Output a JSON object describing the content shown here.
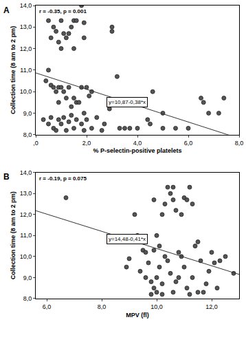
{
  "chart_data": [
    {
      "type": "scatter",
      "title": "A",
      "x_label": "% P-selectin-positive platelets",
      "y_label": "Collection time (8 am to 2 pm)",
      "annotation": "r = -0.35, p = 0.001",
      "regression": {
        "intercept": 10.87,
        "slope": -0.38,
        "label": "y=10,87-0,38*x"
      },
      "color": "#555555",
      "marker": "circle",
      "grid": false,
      "x": [
        0.5,
        0.7,
        0.8,
        1.0,
        1.1,
        1.3,
        0.6,
        0.9,
        1.2,
        1.0,
        1.4,
        1.5,
        1.6,
        1.8,
        1.9,
        1.5,
        3.0,
        3.0,
        1.9,
        0.5,
        0.4,
        0.6,
        0.7,
        0.8,
        0.9,
        1.0,
        1.1,
        1.3,
        1.5,
        1.6,
        1.7,
        1.8,
        2.0,
        2.1,
        2.2,
        3.2,
        3.1,
        4.6,
        2.9,
        1.2,
        1.4,
        0.9,
        1.9,
        0.3,
        0.5,
        0.6,
        0.7,
        0.8,
        0.9,
        1.0,
        1.1,
        1.2,
        1.3,
        1.4,
        1.5,
        1.6,
        1.8,
        1.9,
        2.0,
        2.2,
        2.4,
        2.6,
        2.7,
        3.3,
        3.5,
        3.7,
        4.0,
        4.4,
        4.5,
        5.0,
        5.5,
        6.0,
        6.5,
        6.6,
        6.8,
        7.2,
        7.4,
        5.0
      ],
      "y": [
        13.3,
        13.0,
        12.8,
        13.3,
        12.7,
        12.7,
        12.5,
        12.3,
        12.5,
        12.0,
        13.0,
        13.3,
        13.3,
        14.0,
        12.5,
        12.0,
        13.0,
        12.8,
        13.2,
        11.0,
        10.5,
        10.3,
        10.2,
        10.0,
        10.2,
        10.2,
        10.0,
        10.2,
        9.7,
        9.5,
        9.5,
        10.2,
        10.2,
        9.8,
        10.0,
        10.7,
        9.5,
        10.0,
        9.2,
        9.7,
        9.3,
        9.5,
        9.0,
        8.7,
        8.5,
        8.8,
        8.3,
        8.2,
        8.7,
        8.5,
        8.8,
        8.2,
        8.6,
        8.9,
        8.3,
        8.7,
        8.5,
        8.2,
        8.7,
        8.3,
        8.8,
        8.2,
        8.5,
        8.3,
        8.3,
        8.3,
        8.3,
        8.7,
        8.5,
        8.3,
        8.3,
        8.3,
        9.7,
        9.5,
        9.0,
        9.0,
        9.7,
        9.0
      ],
      "xlim": [
        0,
        8
      ],
      "xticks": [
        {
          "value": 0,
          "label": ",0"
        },
        {
          "value": 2,
          "label": "2,0"
        },
        {
          "value": 4,
          "label": "4,0"
        },
        {
          "value": 6,
          "label": "6,0"
        },
        {
          "value": 8,
          "label": "8,0"
        }
      ],
      "ylim": [
        8,
        14
      ],
      "yticks": [
        {
          "value": 8,
          "label": "8,0"
        },
        {
          "value": 9,
          "label": "9,0"
        },
        {
          "value": 10,
          "label": "10,0"
        },
        {
          "value": 11,
          "label": "11,0"
        },
        {
          "value": 12,
          "label": "12,0"
        },
        {
          "value": 13,
          "label": "13,0"
        },
        {
          "value": 14,
          "label": "14,0"
        }
      ]
    },
    {
      "type": "scatter",
      "title": "B",
      "x_label": "MPV (fl)",
      "y_label": "Collection time (8 am to 2 pm)",
      "annotation": "r = -0.19, p = 0.075",
      "regression": {
        "intercept": 14.48,
        "slope": -0.41,
        "label": "y=14,48-0,41*x"
      },
      "color": "#555555",
      "marker": "circle",
      "grid": false,
      "x": [
        6.7,
        8.9,
        9.0,
        9.2,
        9.3,
        9.4,
        9.5,
        9.6,
        9.7,
        9.8,
        9.8,
        9.9,
        10.0,
        10.0,
        10.1,
        10.1,
        10.2,
        10.2,
        10.3,
        10.4,
        10.5,
        10.6,
        10.6,
        10.7,
        10.3,
        10.4,
        10.5,
        10.6,
        10.7,
        10.8,
        10.9,
        11.0,
        11.1,
        11.2,
        11.3,
        11.0,
        11.1,
        11.2,
        11.3,
        11.4,
        11.5,
        11.6,
        11.7,
        11.8,
        11.9,
        12.0,
        12.1,
        12.2,
        12.3,
        12.5,
        12.8,
        9.9,
        10.0,
        10.2,
        9.6,
        9.4,
        10.8,
        11.5,
        10.9,
        9.9
      ],
      "y": [
        12.8,
        9.5,
        9.9,
        12.0,
        11.0,
        10.7,
        10.3,
        10.2,
        9.7,
        8.8,
        8.2,
        8.5,
        8.3,
        9.0,
        9.5,
        10.5,
        8.7,
        12.0,
        12.5,
        13.3,
        13.0,
        12.7,
        13.3,
        12.2,
        10.0,
        9.8,
        9.2,
        8.3,
        8.8,
        10.2,
        10.0,
        12.8,
        12.7,
        13.3,
        12.5,
        9.5,
        8.5,
        8.2,
        9.0,
        10.5,
        10.7,
        9.8,
        8.3,
        8.7,
        9.3,
        10.2,
        9.7,
        8.5,
        9.8,
        10.0,
        9.2,
        10.3,
        11.0,
        8.2,
        9.0,
        9.3,
        9.0,
        8.3,
        12.0,
        12.7
      ],
      "xlim": [
        5.6,
        13
      ],
      "xticks": [
        {
          "value": 6,
          "label": "6,0"
        },
        {
          "value": 8,
          "label": "8,0"
        },
        {
          "value": 10,
          "label": "10,0"
        },
        {
          "value": 12,
          "label": "12,0"
        }
      ],
      "ylim": [
        8,
        14
      ],
      "yticks": [
        {
          "value": 8,
          "label": "8,0"
        },
        {
          "value": 9,
          "label": "9,0"
        },
        {
          "value": 10,
          "label": "10,0"
        },
        {
          "value": 11,
          "label": "11,0"
        },
        {
          "value": 12,
          "label": "12,0"
        },
        {
          "value": 13,
          "label": "13,0"
        },
        {
          "value": 14,
          "label": "14,0"
        }
      ]
    }
  ]
}
